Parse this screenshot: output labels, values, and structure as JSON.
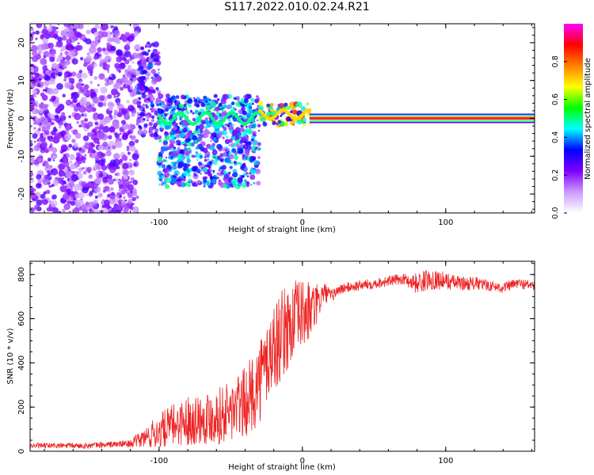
{
  "title": "S117.2022.010.02.24.R21",
  "chart_data": [
    {
      "type": "heatmap",
      "name": "spectrogram",
      "xlabel": "Height of straight line (km)",
      "ylabel": "Frequency (Hz)",
      "xlim": [
        -190,
        162
      ],
      "ylim": [
        -25,
        25
      ],
      "xticks": [
        -100,
        0,
        100
      ],
      "xtick_labels": [
        "-100",
        "0",
        "100"
      ],
      "yticks": [
        -20,
        -10,
        0,
        10,
        20
      ],
      "ytick_labels": [
        "-20",
        "-10",
        "0",
        "10",
        "20"
      ],
      "colorbar": {
        "label": "Normalized spectral amplitude",
        "range": [
          0,
          1
        ],
        "ticks": [
          0.0,
          0.2,
          0.4,
          0.6,
          0.8
        ],
        "tick_labels": [
          "0.0",
          "0.2",
          "0.4",
          "0.6",
          "0.8"
        ],
        "colors": [
          "#ffffff",
          "#cc99ff",
          "#7f00ff",
          "#0000ff",
          "#00ffff",
          "#00ff00",
          "#ffff00",
          "#ff8000",
          "#ff0000",
          "#ff00ff"
        ]
      },
      "regions": [
        {
          "x": [
            -190,
            -115
          ],
          "y": [
            -25,
            25
          ],
          "level": 0.22,
          "desc": "scattered noise"
        },
        {
          "x": [
            -115,
            -100
          ],
          "y": [
            -5,
            20
          ],
          "level": 0.3,
          "desc": "transition"
        },
        {
          "x": [
            -100,
            -30
          ],
          "y": [
            -18,
            6
          ],
          "level": 0.4,
          "desc": "broad signal"
        },
        {
          "x": [
            -30,
            5
          ],
          "y": [
            -2,
            4
          ],
          "level": 0.75,
          "desc": "narrowing signal"
        },
        {
          "x": [
            5,
            162
          ],
          "y": [
            -0.5,
            0.5
          ],
          "level": 0.95,
          "desc": "carrier line at 0 Hz"
        }
      ]
    },
    {
      "type": "line",
      "name": "snr",
      "xlabel": "Height of straight line (km)",
      "ylabel": "SNR (10 * v/v)",
      "xlim": [
        -190,
        162
      ],
      "ylim": [
        0,
        860
      ],
      "xticks": [
        -100,
        0,
        100
      ],
      "xtick_labels": [
        "-100",
        "0",
        "100"
      ],
      "yticks": [
        0,
        200,
        400,
        600,
        800
      ],
      "ytick_labels": [
        "0",
        "200",
        "400",
        "600",
        "800"
      ],
      "color": "#ee2222",
      "x": [
        -190,
        -150,
        -120,
        -110,
        -100,
        -90,
        -80,
        -70,
        -60,
        -50,
        -40,
        -35,
        -30,
        -25,
        -20,
        -15,
        -10,
        -5,
        0,
        5,
        10,
        15,
        20,
        25,
        30,
        40,
        50,
        60,
        70,
        80,
        90,
        100,
        110,
        120,
        130,
        140,
        150,
        162
      ],
      "y": [
        25,
        25,
        35,
        60,
        90,
        120,
        140,
        150,
        160,
        180,
        220,
        260,
        320,
        400,
        470,
        520,
        560,
        600,
        620,
        630,
        660,
        720,
        700,
        730,
        740,
        750,
        760,
        770,
        780,
        760,
        780,
        770,
        760,
        760,
        750,
        740,
        760,
        750
      ],
      "noise_amp": [
        8,
        8,
        10,
        30,
        50,
        60,
        70,
        75,
        80,
        90,
        100,
        110,
        120,
        130,
        130,
        130,
        120,
        110,
        100,
        90,
        60,
        30,
        20,
        15,
        15,
        15,
        15,
        15,
        15,
        30,
        30,
        25,
        20,
        20,
        15,
        15,
        15,
        15
      ]
    }
  ]
}
